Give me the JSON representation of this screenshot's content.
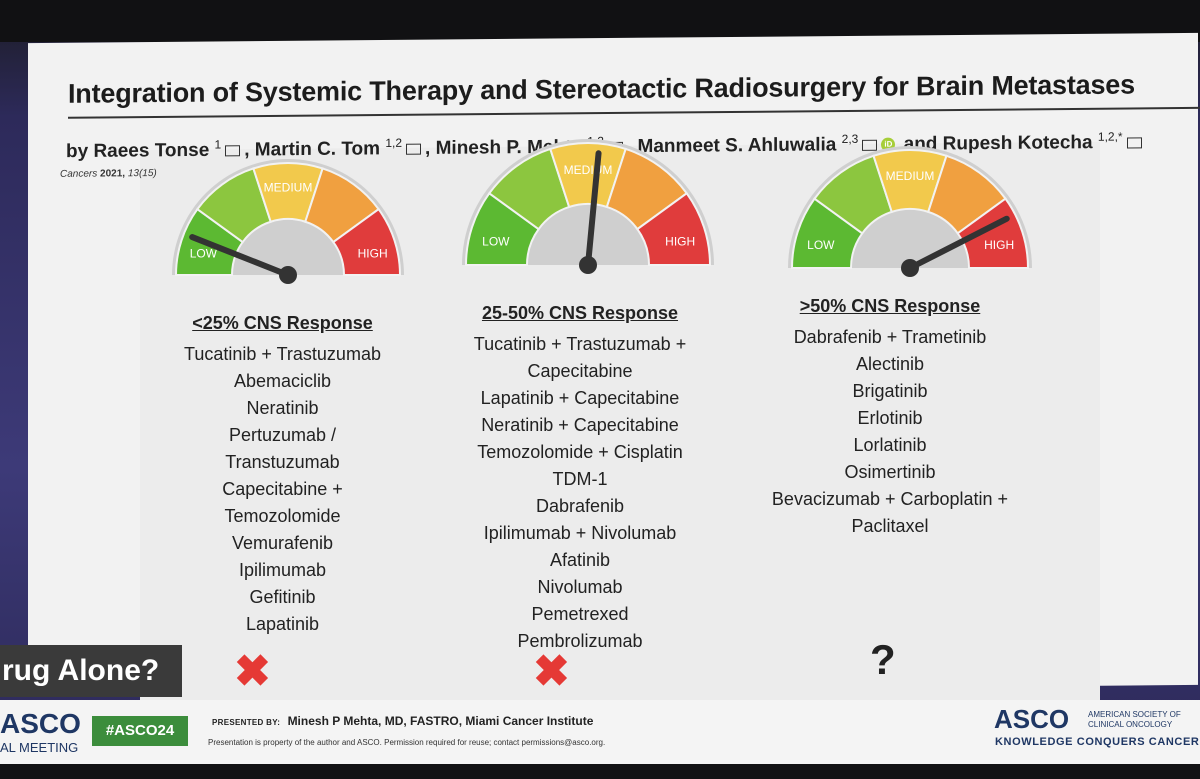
{
  "slide": {
    "title": "Integration of Systemic Therapy and Stereotactic Radiosurgery for Brain Metastases",
    "authors": [
      {
        "name": "by Raees Tonse",
        "sup": "1"
      },
      {
        "name": "Martin C. Tom",
        "sup": "1,2"
      },
      {
        "name": "Minesh P. Mehta",
        "sup": "1,2"
      },
      {
        "name": "Manmeet S. Ahluwalia",
        "sup": "2,3"
      },
      {
        "name": "and Rupesh Kotecha",
        "sup": "1,2,*"
      }
    ],
    "orcid_label": "iD",
    "citation_journal": "Cancers",
    "citation_year": "2021,",
    "citation_volume": "13(15)"
  },
  "gauges": [
    {
      "low_label": "LOW",
      "medium_label": "MEDIUM",
      "high_label": "HIGH",
      "needle_level": 0.12
    },
    {
      "low_label": "LOW",
      "medium_label": "MEDIUM",
      "high_label": "HIGH",
      "needle_level": 0.53
    },
    {
      "low_label": "LOW",
      "medium_label": "MEDIUM",
      "high_label": "HIGH",
      "needle_level": 0.85
    }
  ],
  "columns": [
    {
      "heading": "<25% CNS Response",
      "items": [
        "Tucatinib + Trastuzumab",
        "Abemaciclib",
        "Neratinib",
        "Pertuzumab /",
        "Transtuzumab",
        "Capecitabine +",
        "Temozolomide",
        "Vemurafenib",
        "Ipilimumab",
        "Gefitinib",
        "Lapatinib"
      ],
      "verdict": "✖"
    },
    {
      "heading": "25-50% CNS Response",
      "items": [
        "Tucatinib + Trastuzumab +",
        "Capecitabine",
        "Lapatinib + Capecitabine",
        "Neratinib + Capecitabine",
        "Temozolomide  + Cisplatin",
        "TDM-1",
        "Dabrafenib",
        "Ipilimumab + Nivolumab",
        "Afatinib",
        "Nivolumab",
        "Pemetrexed",
        "Pembrolizumab"
      ],
      "verdict": "✖"
    },
    {
      "heading": ">50% CNS Response",
      "items": [
        "Dabrafenib + Trametinib",
        "Alectinib",
        "Brigatinib",
        "Erlotinib",
        "Lorlatinib",
        "Osimertinib",
        "Bevacizumab + Carboplatin +",
        "Paclitaxel"
      ],
      "verdict": "?"
    }
  ],
  "side_label": "rug Alone?",
  "footer": {
    "asco_left": "ASCO",
    "meeting": "AL MEETING",
    "hashtag": "#ASCO24",
    "presented_label": "PRESENTED BY:",
    "presenter": "Minesh P Mehta, MD, FASTRO, Miami Cancer Institute",
    "permission": "Presentation is property of the author and ASCO. Permission required for reuse; contact permissions@asco.org.",
    "asco_right": "ASCO",
    "society_line1": "AMERICAN SOCIETY OF",
    "society_line2": "CLINICAL ONCOLOGY",
    "tagline": "KNOWLEDGE CONQUERS CANCER"
  },
  "colors": {
    "low": "#5cb932",
    "lowmid": "#8cc63f",
    "medium": "#f2c94c",
    "midhigh": "#f0a040",
    "high": "#e03c3c",
    "x": "#e53935"
  }
}
